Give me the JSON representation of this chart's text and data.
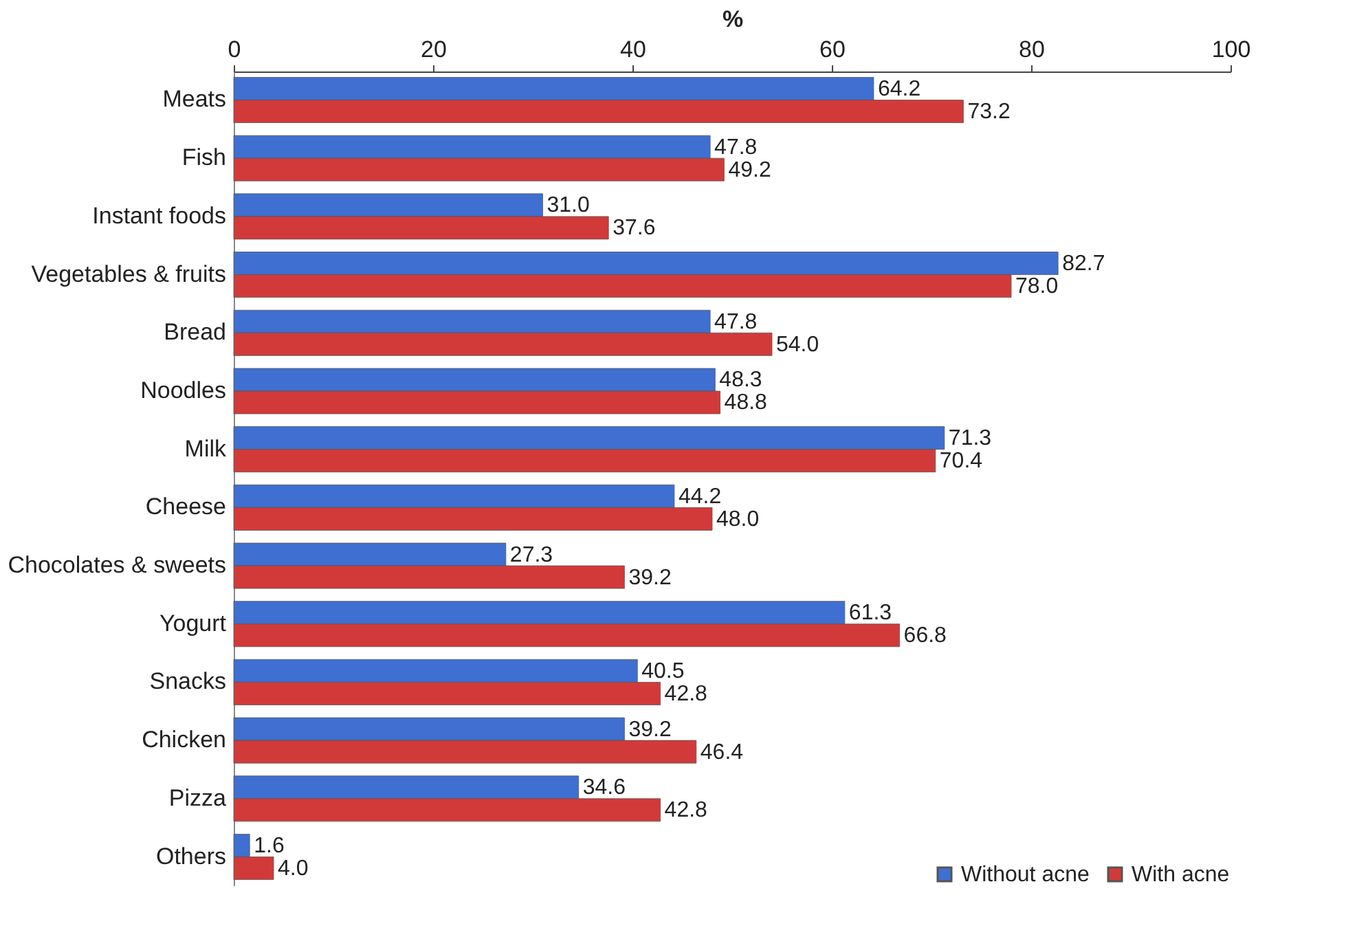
{
  "chart_data": {
    "type": "bar",
    "orientation": "horizontal",
    "xlabel": "%",
    "categories": [
      "Meats",
      "Fish",
      "Instant foods",
      "Vegetables & fruits",
      "Bread",
      "Noodles",
      "Milk",
      "Cheese",
      "Chocolates & sweets",
      "Yogurt",
      "Snacks",
      "Chicken",
      "Pizza",
      "Others"
    ],
    "series": [
      {
        "name": "Without acne",
        "color": "#3f6fd1",
        "values": [
          64.2,
          47.8,
          31.0,
          82.7,
          47.8,
          48.3,
          71.3,
          44.2,
          27.3,
          61.3,
          40.5,
          39.2,
          34.6,
          1.6
        ],
        "value_labels": [
          "64.2",
          "47.8",
          "31.0",
          "82.7",
          "47.8",
          "48.3",
          "71.3",
          "44.2",
          "27.3",
          "61.3",
          "40.5",
          "39.2",
          "34.6",
          "1.6"
        ]
      },
      {
        "name": "With acne",
        "color": "#d23a3a",
        "values": [
          73.2,
          49.2,
          37.6,
          78.0,
          54.0,
          48.8,
          70.4,
          48.0,
          39.2,
          66.8,
          42.8,
          46.4,
          42.8,
          4.0
        ],
        "value_labels": [
          "73.2",
          "49.2",
          "37.6",
          "78.0",
          "54.0",
          "48.8",
          "70.4",
          "48.0",
          "39.2",
          "66.8",
          "42.8",
          "46.4",
          "42.8",
          "4.0"
        ]
      }
    ],
    "xlim": [
      0,
      100
    ],
    "xticks": [
      0,
      20,
      40,
      60,
      80,
      100
    ],
    "grid": false,
    "legend": "bottom right"
  }
}
